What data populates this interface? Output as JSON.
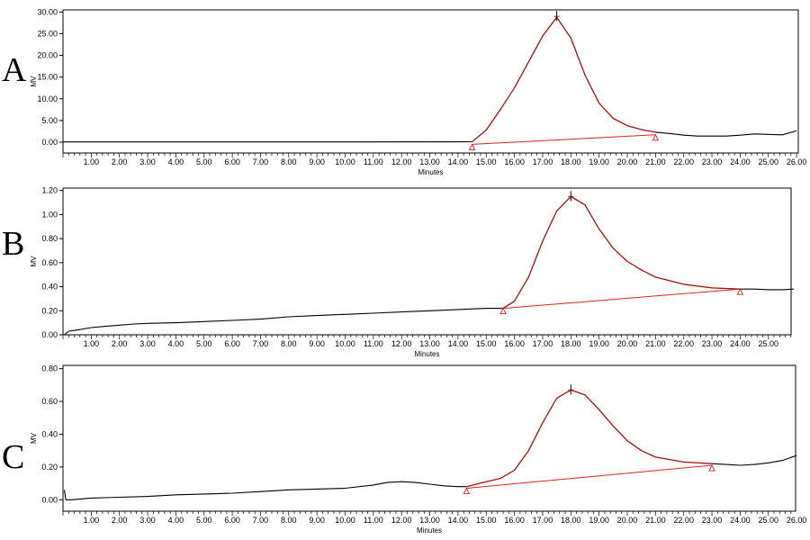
{
  "colors": {
    "trace": "#000000",
    "peak": "#a01010",
    "baseline": "#e02020",
    "frame": "#000000"
  },
  "chart_data": [
    {
      "type": "line",
      "panel_label": "A",
      "xlabel": "Minutes",
      "ylabel": "MV",
      "xlim": [
        0,
        26
      ],
      "ylim": [
        -2.5,
        30.5
      ],
      "x_ticks": [
        1,
        2,
        3,
        4,
        5,
        6,
        7,
        8,
        9,
        10,
        11,
        12,
        13,
        14,
        15,
        16,
        17,
        18,
        19,
        20,
        21,
        22,
        23,
        24,
        25,
        26
      ],
      "x_tick_labels": [
        "1.00",
        "2.00",
        "3.00",
        "4.00",
        "5.00",
        "6.00",
        "7.00",
        "8.00",
        "9.00",
        "10.00",
        "11.00",
        "12.00",
        "13.00",
        "14.00",
        "15.00",
        "16.00",
        "17.00",
        "18.00",
        "19.00",
        "20.00",
        "21.00",
        "22.00",
        "23.00",
        "24.00",
        "25.00",
        "26.00"
      ],
      "y_ticks": [
        0,
        5,
        10,
        15,
        20,
        25,
        30
      ],
      "y_tick_labels": [
        "0.00",
        "5.00",
        "10.00",
        "15.00",
        "20.00",
        "25.00",
        "30.00"
      ],
      "series": [
        {
          "role": "signal",
          "color": "#000000",
          "x": [
            0,
            2,
            6,
            10,
            14,
            14.5
          ],
          "y": [
            0.05,
            0.05,
            0.05,
            0.05,
            0.08,
            0.1
          ]
        },
        {
          "role": "peak",
          "color": "#a01010",
          "x": [
            14.5,
            15.0,
            15.5,
            16.0,
            16.5,
            17.0,
            17.5,
            18.0,
            18.5,
            19.0,
            19.5,
            20.0,
            20.5,
            21.0
          ],
          "y": [
            0.1,
            2.8,
            7.5,
            12.5,
            18.5,
            24.5,
            28.8,
            24.0,
            15.5,
            9.0,
            5.5,
            3.8,
            2.9,
            2.3
          ]
        },
        {
          "role": "signal",
          "color": "#000000",
          "x": [
            21.0,
            21.5,
            22.0,
            22.5,
            23.0,
            23.5,
            24.0,
            24.5,
            25.0,
            25.5,
            26.0
          ],
          "y": [
            2.3,
            2.0,
            1.6,
            1.4,
            1.4,
            1.4,
            1.6,
            1.9,
            1.8,
            1.7,
            2.6
          ]
        }
      ],
      "baseline": {
        "color": "#e02020",
        "x": [
          14.5,
          21.0
        ],
        "y": [
          -0.5,
          1.7
        ]
      },
      "peak_apex": {
        "x": 17.5,
        "y": 29.0
      }
    },
    {
      "type": "line",
      "panel_label": "B",
      "xlabel": "Minutes",
      "ylabel": "MV",
      "xlim": [
        0,
        26
      ],
      "ylim": [
        0,
        1.22
      ],
      "x_ticks": [
        1,
        2,
        3,
        4,
        5,
        6,
        7,
        8,
        9,
        10,
        11,
        12,
        13,
        14,
        15,
        16,
        17,
        18,
        19,
        20,
        21,
        22,
        23,
        24,
        25
      ],
      "x_tick_labels": [
        "1.00",
        "2.00",
        "3.00",
        "4.00",
        "5.00",
        "6.00",
        "7.00",
        "8.00",
        "9.00",
        "10.00",
        "11.00",
        "12.00",
        "13.00",
        "14.00",
        "15.00",
        "16.00",
        "17.00",
        "18.00",
        "19.00",
        "20.00",
        "21.00",
        "22.00",
        "23.00",
        "24.00",
        "25.00"
      ],
      "y_ticks": [
        0,
        0.2,
        0.4,
        0.6,
        0.8,
        1.0,
        1.2
      ],
      "y_tick_labels": [
        "0.00",
        "0.20",
        "0.40",
        "0.60",
        "0.80",
        "1.00",
        "1.20"
      ],
      "series": [
        {
          "role": "signal",
          "color": "#000000",
          "x": [
            0.05,
            0.2,
            0.5,
            1.0,
            1.5,
            2.0,
            2.5,
            3.0,
            4.0,
            5.0,
            6.0,
            7.0,
            8.0,
            9.0,
            10.0,
            11.0,
            12.0,
            13.0,
            14.0,
            15.0,
            15.6
          ],
          "y": [
            0.0,
            0.03,
            0.04,
            0.06,
            0.07,
            0.08,
            0.09,
            0.095,
            0.1,
            0.11,
            0.12,
            0.13,
            0.15,
            0.16,
            0.17,
            0.18,
            0.19,
            0.2,
            0.21,
            0.22,
            0.22
          ]
        },
        {
          "role": "peak",
          "color": "#a01010",
          "x": [
            15.6,
            16.0,
            16.5,
            17.0,
            17.5,
            18.0,
            18.5,
            19.0,
            19.5,
            20.0,
            20.5,
            21.0,
            22.0,
            23.0,
            24.0
          ],
          "y": [
            0.22,
            0.28,
            0.48,
            0.78,
            1.03,
            1.15,
            1.08,
            0.88,
            0.72,
            0.61,
            0.54,
            0.48,
            0.42,
            0.39,
            0.38
          ]
        },
        {
          "role": "signal",
          "color": "#000000",
          "x": [
            24.0,
            24.5,
            25.0,
            25.5,
            25.9
          ],
          "y": [
            0.38,
            0.38,
            0.375,
            0.375,
            0.38
          ]
        }
      ],
      "baseline": {
        "color": "#e02020",
        "x": [
          15.6,
          24.0
        ],
        "y": [
          0.22,
          0.38
        ]
      },
      "peak_apex": {
        "x": 18.0,
        "y": 1.15
      }
    },
    {
      "type": "line",
      "panel_label": "C",
      "xlabel": "Minutes",
      "ylabel": "MV",
      "xlim": [
        0,
        26
      ],
      "ylim": [
        -0.07,
        0.82
      ],
      "x_ticks": [
        1,
        2,
        3,
        4,
        5,
        6,
        7,
        8,
        9,
        10,
        11,
        12,
        13,
        14,
        15,
        16,
        17,
        18,
        19,
        20,
        21,
        22,
        23,
        24,
        25,
        26
      ],
      "x_tick_labels": [
        "1.00",
        "2.00",
        "3.00",
        "4.00",
        "5.00",
        "6.00",
        "7.00",
        "8.00",
        "9.00",
        "10.00",
        "11.00",
        "12.00",
        "13.00",
        "14.00",
        "15.00",
        "16.00",
        "17.00",
        "18.00",
        "19.00",
        "20.00",
        "21.00",
        "22.00",
        "23.00",
        "24.00",
        "25.00",
        "26.00"
      ],
      "y_ticks": [
        0,
        0.2,
        0.4,
        0.6,
        0.8
      ],
      "y_tick_labels": [
        "0.00",
        "0.20",
        "0.40",
        "0.60",
        "0.80"
      ],
      "series": [
        {
          "role": "signal",
          "color": "#000000",
          "x": [
            0.05,
            0.1,
            0.3,
            1.0,
            2.0,
            3.0,
            4.0,
            5.0,
            6.0,
            7.0,
            8.0,
            9.0,
            10.0,
            11.0,
            11.5,
            12.0,
            12.5,
            13.0,
            13.5,
            14.0,
            14.3
          ],
          "y": [
            0.06,
            0.0,
            0.0,
            0.01,
            0.015,
            0.02,
            0.03,
            0.035,
            0.04,
            0.05,
            0.06,
            0.065,
            0.07,
            0.09,
            0.105,
            0.11,
            0.105,
            0.095,
            0.085,
            0.08,
            0.08
          ]
        },
        {
          "role": "peak",
          "color": "#a01010",
          "x": [
            14.3,
            15.0,
            15.5,
            16.0,
            16.5,
            17.0,
            17.5,
            18.0,
            18.5,
            19.0,
            19.5,
            20.0,
            20.5,
            21.0,
            22.0,
            23.0
          ],
          "y": [
            0.08,
            0.11,
            0.13,
            0.18,
            0.3,
            0.47,
            0.62,
            0.67,
            0.64,
            0.55,
            0.45,
            0.36,
            0.3,
            0.26,
            0.23,
            0.22
          ]
        },
        {
          "role": "signal",
          "color": "#000000",
          "x": [
            23.0,
            23.5,
            24.0,
            24.5,
            25.0,
            25.5,
            26.0
          ],
          "y": [
            0.22,
            0.215,
            0.21,
            0.215,
            0.225,
            0.24,
            0.27
          ]
        }
      ],
      "baseline": {
        "color": "#e02020",
        "x": [
          14.3,
          23.0
        ],
        "y": [
          0.07,
          0.21
        ]
      },
      "peak_apex": {
        "x": 18.0,
        "y": 0.67
      }
    }
  ]
}
